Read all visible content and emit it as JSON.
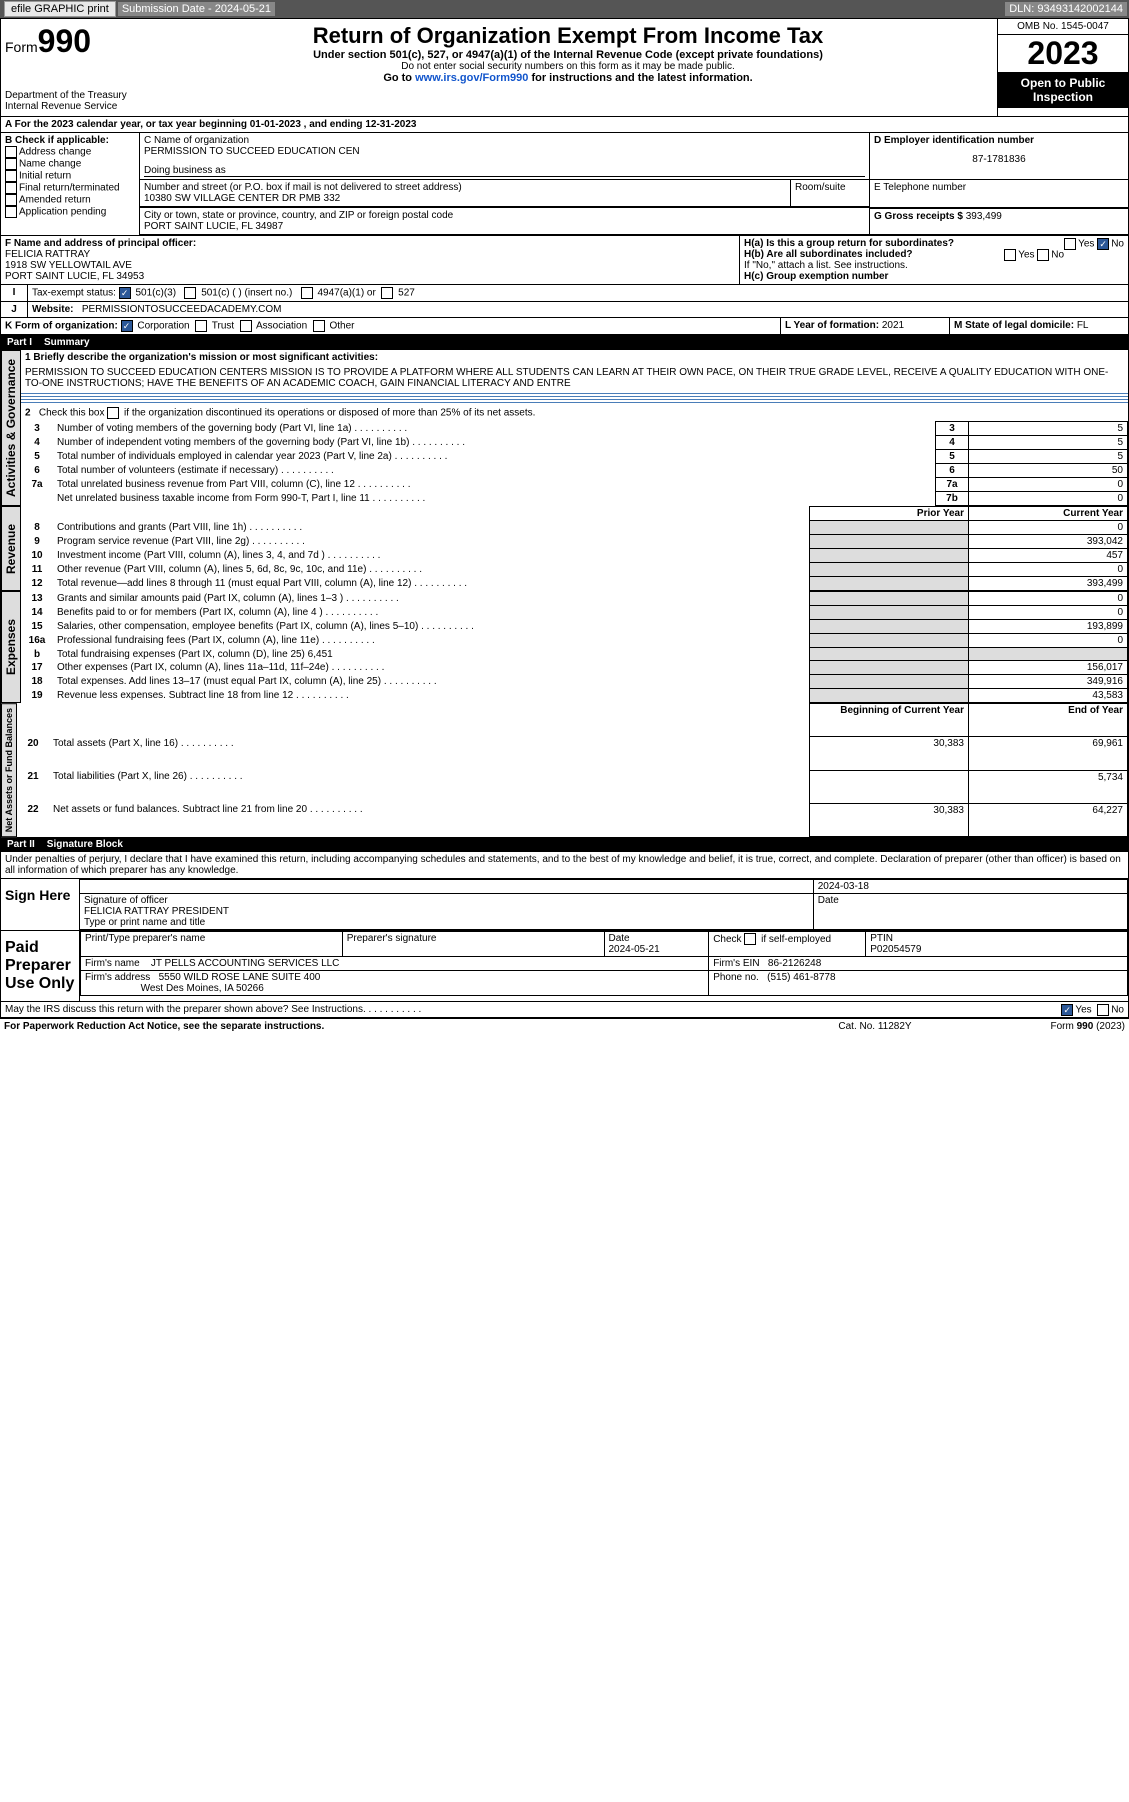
{
  "topbar": {
    "efile": "efile GRAPHIC print",
    "subdate_lbl": "Submission Date - 2024-05-21",
    "dln": "DLN: 93493142002144"
  },
  "hdr": {
    "form": "Form",
    "num": "990",
    "title": "Return of Organization Exempt From Income Tax",
    "sub1": "Under section 501(c), 527, or 4947(a)(1) of the Internal Revenue Code (except private foundations)",
    "sub2": "Do not enter social security numbers on this form as it may be made public.",
    "sub3": "Go to ",
    "link": "www.irs.gov/Form990",
    "sub4": " for instructions and the latest information.",
    "dept": "Department of the Treasury",
    "irs": "Internal Revenue Service",
    "omb": "OMB No. 1545-0047",
    "year": "2023",
    "inspect": "Open to Public Inspection"
  },
  "a": {
    "line": "A For the 2023 calendar year, or tax year beginning 01-01-2023   , and ending 12-31-2023"
  },
  "b": {
    "title": "B Check if applicable:",
    "items": [
      "Address change",
      "Name change",
      "Initial return",
      "Final return/terminated",
      "Amended return",
      "Application pending"
    ]
  },
  "c": {
    "namelbl": "C Name of organization",
    "name": "PERMISSION TO SUCCEED EDUCATION CEN",
    "dba": "Doing business as",
    "addrlbl": "Number and street (or P.O. box if mail is not delivered to street address)",
    "addr": "10380 SW VILLAGE CENTER DR PMB 332",
    "room": "Room/suite",
    "citylbl": "City or town, state or province, country, and ZIP or foreign postal code",
    "city": "PORT SAINT LUCIE, FL  34987"
  },
  "d": {
    "lbl": "D Employer identification number",
    "val": "87-1781836"
  },
  "e": {
    "lbl": "E Telephone number",
    "val": ""
  },
  "g": {
    "lbl": "G Gross receipts $",
    "val": "393,499"
  },
  "f": {
    "lbl": "F  Name and address of principal officer:",
    "name": "FELICIA RATTRAY",
    "addr1": "1918 SW YELLOWTAIL AVE",
    "addr2": "PORT SAINT LUCIE, FL  34953"
  },
  "h": {
    "a": "H(a)  Is this a group return for subordinates?",
    "b": "H(b)  Are all subordinates included?",
    "note": "If \"No,\" attach a list. See instructions.",
    "c": "H(c)  Group exemption number",
    "yes": "Yes",
    "no": "No"
  },
  "i": {
    "lbl": "I",
    "txt": "Tax-exempt status:",
    "c3": "501(c)(3)",
    "c": "501(c) (  ) (insert no.)",
    "a1": "4947(a)(1) or",
    "s527": "527"
  },
  "j": {
    "lbl": "J",
    "txt": "Website:",
    "val": "PERMISSIONTOSUCCEEDACADEMY.COM"
  },
  "k": {
    "lbl": "K Form of organization:",
    "corp": "Corporation",
    "trust": "Trust",
    "assoc": "Association",
    "other": "Other"
  },
  "l": {
    "lbl": "L Year of formation:",
    "val": "2021"
  },
  "m": {
    "lbl": "M State of legal domicile:",
    "val": "FL"
  },
  "part1": {
    "num": "Part I",
    "title": "Summary",
    "q1": "1  Briefly describe the organization's mission or most significant activities:",
    "mission": "PERMISSION TO SUCCEED EDUCATION CENTERS MISSION IS TO PROVIDE A PLATFORM WHERE ALL STUDENTS CAN LEARN AT THEIR OWN PACE, ON THEIR TRUE GRADE LEVEL, RECEIVE A QUALITY EDUCATION WITH ONE-TO-ONE INSTRUCTIONS; HAVE THE BENEFITS OF AN ACADEMIC COACH, GAIN FINANCIAL LITERACY AND ENTRE",
    "q2": "2   Check this box        if the organization discontinued its operations or disposed of more than 25% of its net assets.",
    "sections": {
      "gov": "Activities & Governance",
      "rev": "Revenue",
      "exp": "Expenses",
      "net": "Net Assets or Fund Balances"
    },
    "lines": [
      {
        "n": "3",
        "t": "Number of voting members of the governing body (Part VI, line 1a)",
        "box": "3",
        "cur": "5"
      },
      {
        "n": "4",
        "t": "Number of independent voting members of the governing body (Part VI, line 1b)",
        "box": "4",
        "cur": "5"
      },
      {
        "n": "5",
        "t": "Total number of individuals employed in calendar year 2023 (Part V, line 2a)",
        "box": "5",
        "cur": "5"
      },
      {
        "n": "6",
        "t": "Total number of volunteers (estimate if necessary)",
        "box": "6",
        "cur": "50"
      },
      {
        "n": "7a",
        "t": "Total unrelated business revenue from Part VIII, column (C), line 12",
        "box": "7a",
        "cur": "0"
      },
      {
        "n": "",
        "t": "Net unrelated business taxable income from Form 990-T, Part I, line 11",
        "box": "7b",
        "cur": "0"
      }
    ],
    "hdrs": {
      "prior": "Prior Year",
      "curr": "Current Year",
      "beg": "Beginning of Current Year",
      "end": "End of Year"
    },
    "rev": [
      {
        "n": "8",
        "t": "Contributions and grants (Part VIII, line 1h)",
        "p": "",
        "c": "0"
      },
      {
        "n": "9",
        "t": "Program service revenue (Part VIII, line 2g)",
        "p": "",
        "c": "393,042"
      },
      {
        "n": "10",
        "t": "Investment income (Part VIII, column (A), lines 3, 4, and 7d )",
        "p": "",
        "c": "457"
      },
      {
        "n": "11",
        "t": "Other revenue (Part VIII, column (A), lines 5, 6d, 8c, 9c, 10c, and 11e)",
        "p": "",
        "c": "0"
      },
      {
        "n": "12",
        "t": "Total revenue—add lines 8 through 11 (must equal Part VIII, column (A), line 12)",
        "p": "",
        "c": "393,499"
      }
    ],
    "exp": [
      {
        "n": "13",
        "t": "Grants and similar amounts paid (Part IX, column (A), lines 1–3 )",
        "p": "",
        "c": "0"
      },
      {
        "n": "14",
        "t": "Benefits paid to or for members (Part IX, column (A), line 4 )",
        "p": "",
        "c": "0"
      },
      {
        "n": "15",
        "t": "Salaries, other compensation, employee benefits (Part IX, column (A), lines 5–10)",
        "p": "",
        "c": "193,899"
      },
      {
        "n": "16a",
        "t": "Professional fundraising fees (Part IX, column (A), line 11e)",
        "p": "",
        "c": "0"
      },
      {
        "n": "b",
        "t": "Total fundraising expenses (Part IX, column (D), line 25) 6,451",
        "onecol": true
      },
      {
        "n": "17",
        "t": "Other expenses (Part IX, column (A), lines 11a–11d, 11f–24e)",
        "p": "",
        "c": "156,017"
      },
      {
        "n": "18",
        "t": "Total expenses. Add lines 13–17 (must equal Part IX, column (A), line 25)",
        "p": "",
        "c": "349,916"
      },
      {
        "n": "19",
        "t": "Revenue less expenses. Subtract line 18 from line 12",
        "p": "",
        "c": "43,583"
      }
    ],
    "net": [
      {
        "n": "20",
        "t": "Total assets (Part X, line 16)",
        "p": "30,383",
        "c": "69,961"
      },
      {
        "n": "21",
        "t": "Total liabilities (Part X, line 26)",
        "p": "",
        "c": "5,734"
      },
      {
        "n": "22",
        "t": "Net assets or fund balances. Subtract line 21 from line 20",
        "p": "30,383",
        "c": "64,227"
      }
    ]
  },
  "part2": {
    "num": "Part II",
    "title": "Signature Block",
    "decl": "Under penalties of perjury, I declare that I have examined this return, including accompanying schedules and statements, and to the best of my knowledge and belief, it is true, correct, and complete. Declaration of preparer (other than officer) is based on all information of which preparer has any knowledge.",
    "sign": "Sign Here",
    "siglbl": "Signature of officer",
    "signame": "FELICIA RATTRAY PRESIDENT",
    "typelbl": "Type or print name and title",
    "datelbl": "Date",
    "date": "2024-03-18",
    "paid": "Paid Preparer Use Only",
    "pname": "Print/Type preparer's name",
    "psig": "Preparer's signature",
    "pdate": "Date",
    "pdateval": "2024-05-21",
    "chkself": "Check        if self-employed",
    "ptin": "PTIN",
    "ptinval": "P02054579",
    "firmname": "Firm's name",
    "firmnameval": "JT PELLS ACCOUNTING SERVICES LLC",
    "firmein": "Firm's EIN",
    "firmeinval": "86-2126248",
    "firmaddr": "Firm's address",
    "firmaddrval": "5550 WILD ROSE LANE SUITE 400",
    "firmcity": "West Des Moines, IA  50266",
    "phone": "Phone no.",
    "phoneval": "(515) 461-8778",
    "discuss": "May the IRS discuss this return with the preparer shown above? See Instructions."
  },
  "foot": {
    "l": "For Paperwork Reduction Act Notice, see the separate instructions.",
    "m": "Cat. No. 11282Y",
    "r": "Form 990 (2023)"
  }
}
